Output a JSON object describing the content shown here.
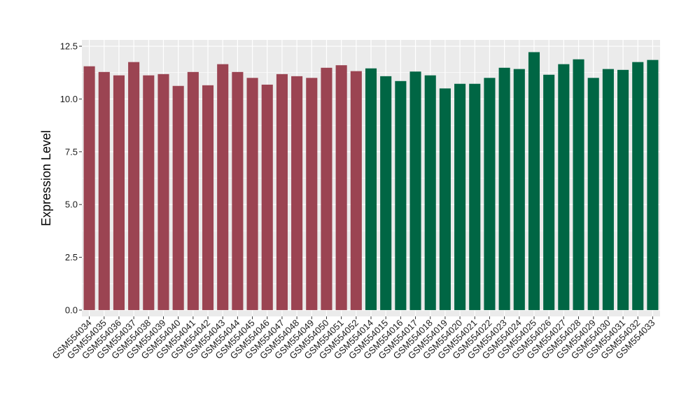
{
  "chart_data": {
    "type": "bar",
    "title": "",
    "xlabel": "",
    "ylabel": "Expression Level",
    "ylim": [
      -0.3,
      12.8
    ],
    "yticks": [
      "0.0",
      "2.5",
      "5.0",
      "7.5",
      "10.0",
      "12.5"
    ],
    "grid": true,
    "legend": "none",
    "categories": [
      "GSM554034",
      "GSM554035",
      "GSM554036",
      "GSM554037",
      "GSM554038",
      "GSM554039",
      "GSM554040",
      "GSM554041",
      "GSM554042",
      "GSM554043",
      "GSM554044",
      "GSM554045",
      "GSM554046",
      "GSM554047",
      "GSM554048",
      "GSM554049",
      "GSM554050",
      "GSM554051",
      "GSM554052",
      "GSM554014",
      "GSM554015",
      "GSM554016",
      "GSM554017",
      "GSM554018",
      "GSM554019",
      "GSM554020",
      "GSM554021",
      "GSM554022",
      "GSM554023",
      "GSM554024",
      "GSM554025",
      "GSM554026",
      "GSM554027",
      "GSM554028",
      "GSM554029",
      "GSM554030",
      "GSM554031",
      "GSM554032",
      "GSM554033"
    ],
    "values": [
      11.55,
      11.28,
      11.12,
      11.75,
      11.12,
      11.18,
      10.62,
      11.28,
      10.65,
      11.65,
      11.28,
      11.0,
      10.68,
      11.18,
      11.08,
      11.0,
      11.48,
      11.6,
      11.32,
      11.45,
      11.08,
      10.85,
      11.3,
      11.12,
      10.5,
      10.72,
      10.72,
      11.0,
      11.48,
      11.42,
      12.22,
      11.15,
      11.65,
      11.88,
      11.0,
      11.42,
      11.38,
      11.75,
      11.85
    ],
    "group_colors": [
      "#9b4452",
      "#9b4452",
      "#9b4452",
      "#9b4452",
      "#9b4452",
      "#9b4452",
      "#9b4452",
      "#9b4452",
      "#9b4452",
      "#9b4452",
      "#9b4452",
      "#9b4452",
      "#9b4452",
      "#9b4452",
      "#9b4452",
      "#9b4452",
      "#9b4452",
      "#9b4452",
      "#9b4452",
      "#006644",
      "#006644",
      "#006644",
      "#006644",
      "#006644",
      "#006644",
      "#006644",
      "#006644",
      "#006644",
      "#006644",
      "#006644",
      "#006644",
      "#006644",
      "#006644",
      "#006644",
      "#006644",
      "#006644",
      "#006644",
      "#006644",
      "#006644"
    ],
    "panel_background": "#ebebeb",
    "gridline_color": "#ffffff"
  }
}
